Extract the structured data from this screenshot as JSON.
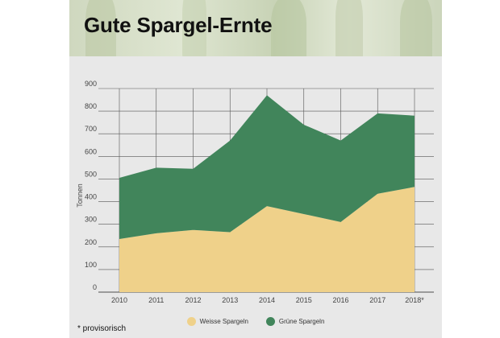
{
  "header": {
    "title": "Gute Spargel-Ernte"
  },
  "footnote": "* provisorisch",
  "colors": {
    "weiss": "#efd18a",
    "gruen": "#41855b",
    "grid": "#555555"
  },
  "chart_data": {
    "type": "area",
    "stacked": true,
    "categories": [
      "2010",
      "2011",
      "2012",
      "2013",
      "2014",
      "2015",
      "2016",
      "2017",
      "2018*"
    ],
    "series": [
      {
        "name": "Weisse Spargeln",
        "values": [
          235,
          260,
          275,
          265,
          380,
          345,
          310,
          435,
          465
        ]
      },
      {
        "name": "Grüne Spargeln",
        "values": [
          270,
          290,
          270,
          405,
          490,
          395,
          360,
          355,
          315
        ]
      }
    ],
    "ylabel": "Tonnen",
    "xlabel": "",
    "ylim": [
      0,
      900
    ],
    "yticks": [
      0,
      100,
      200,
      300,
      400,
      500,
      600,
      700,
      800,
      900
    ],
    "grid": true,
    "legend": "bottom"
  }
}
